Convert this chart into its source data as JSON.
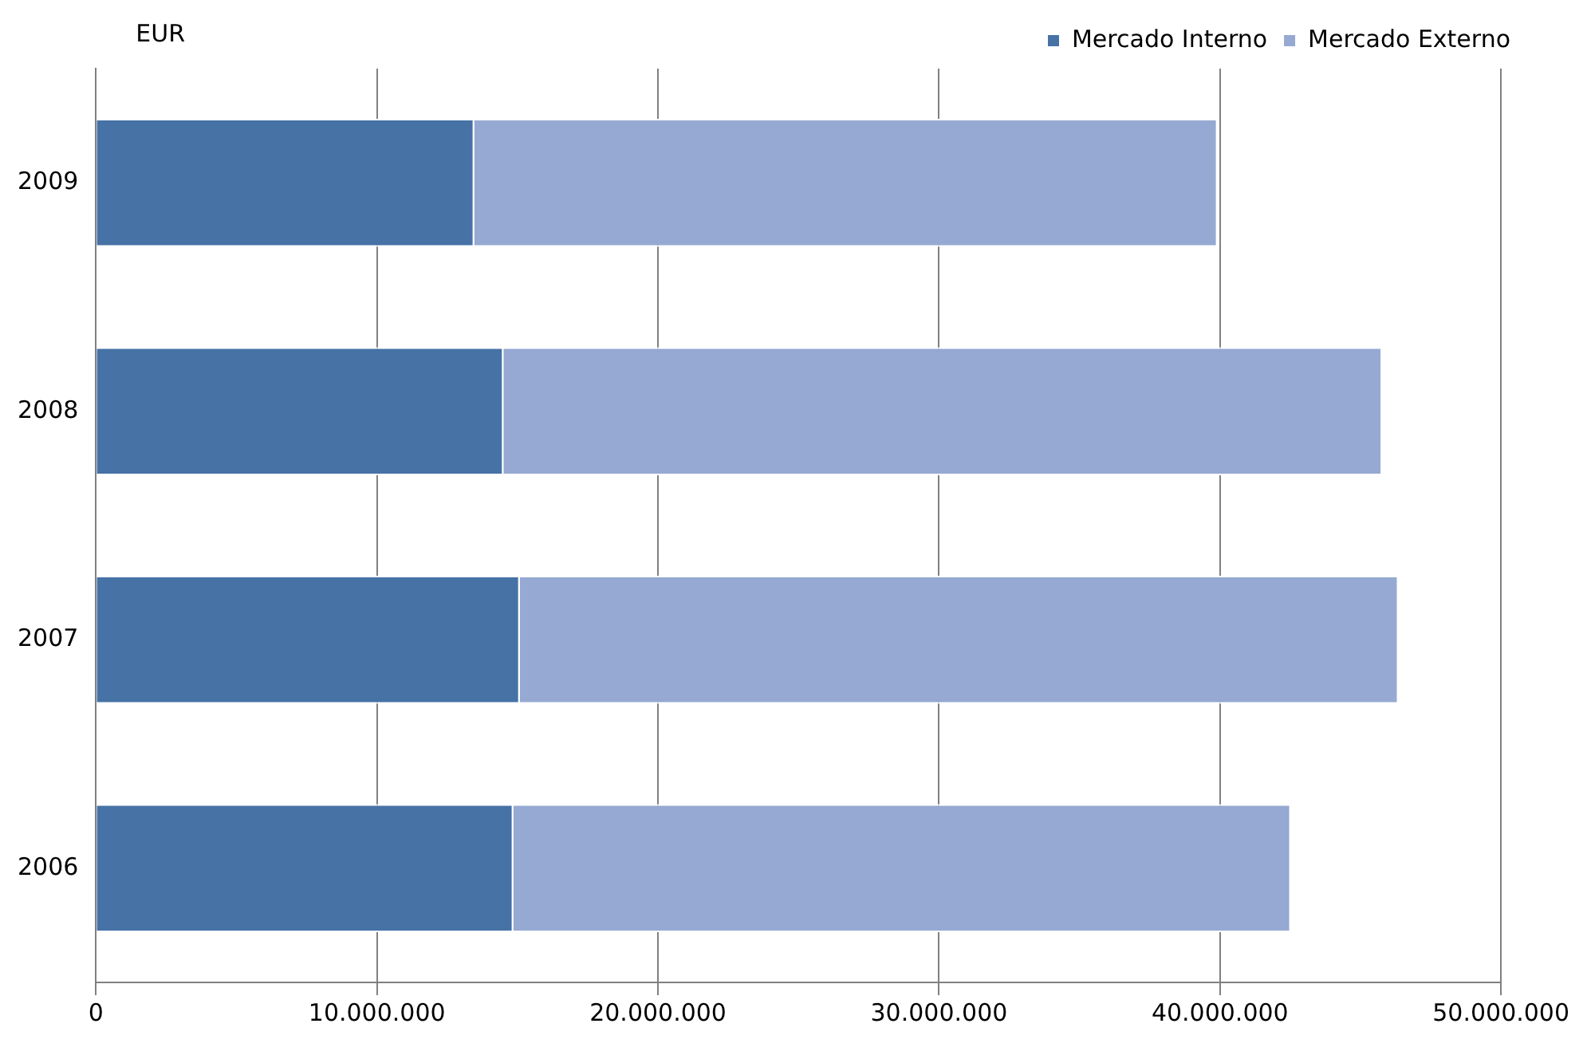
{
  "chart_data": {
    "type": "bar",
    "orientation": "horizontal",
    "stacked": true,
    "ylabel": "EUR",
    "categories": [
      "2009",
      "2008",
      "2007",
      "2006"
    ],
    "series": [
      {
        "name": "Mercado Interno",
        "color": "#4672a6",
        "values": [
          13460000,
          14500000,
          15080000,
          14850000
        ]
      },
      {
        "name": "Mercado Externo",
        "color": "#95a9d2",
        "values": [
          26450000,
          31270000,
          31270000,
          27670000
        ]
      }
    ],
    "xlim": [
      0,
      50000000
    ],
    "xticks": [
      0,
      {
        "value": 10000000,
        "label": "10.000.000"
      },
      {
        "value": 20000000,
        "label": "20.000.000"
      },
      {
        "value": 30000000,
        "label": "30.000.000"
      },
      {
        "value": 40000000,
        "label": "40.000.000"
      },
      {
        "value": 50000000,
        "label": "50.000.000"
      }
    ],
    "grid": "x",
    "legend": "top right"
  }
}
